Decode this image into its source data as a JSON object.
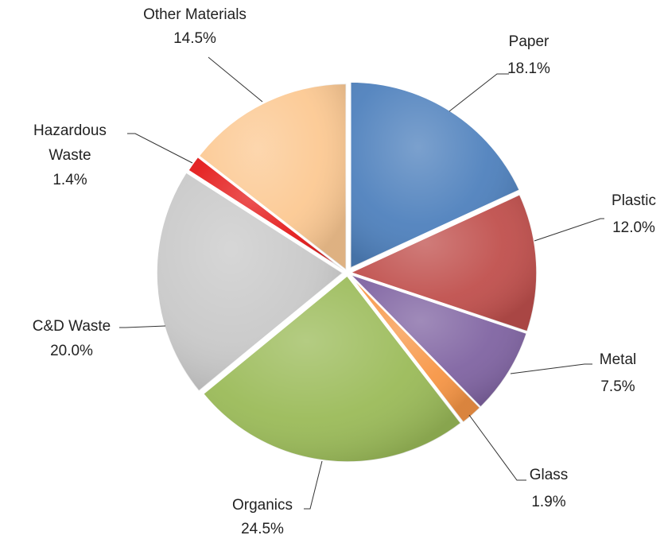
{
  "chart_data": {
    "type": "pie",
    "title": "",
    "start_angle_deg": 0,
    "direction": "clockwise",
    "slices": [
      {
        "label": "Paper",
        "pct_label": "18.1%",
        "value": 18.1,
        "color": "#4f81bd"
      },
      {
        "label": "Plastic",
        "pct_label": "12.0%",
        "value": 12.0,
        "color": "#c0504d"
      },
      {
        "label": "Metal",
        "pct_label": "7.5%",
        "value": 7.5,
        "color": "#8064a2"
      },
      {
        "label": "Glass",
        "pct_label": "1.9%",
        "value": 1.9,
        "color": "#f79646"
      },
      {
        "label": "Organics",
        "pct_label": "24.5%",
        "value": 24.5,
        "color": "#9bbb59"
      },
      {
        "label": "C&D Waste",
        "pct_label": "20.0%",
        "value": 20.0,
        "color": "#c9c9c9"
      },
      {
        "label": "Hazardous Waste",
        "label_lines": [
          "Hazardous",
          "Waste"
        ],
        "pct_label": "1.4%",
        "value": 1.4,
        "color": "#e41a1a"
      },
      {
        "label": "Other Materials",
        "pct_label": "14.5%",
        "value": 14.5,
        "color": "#fcc993"
      }
    ]
  }
}
